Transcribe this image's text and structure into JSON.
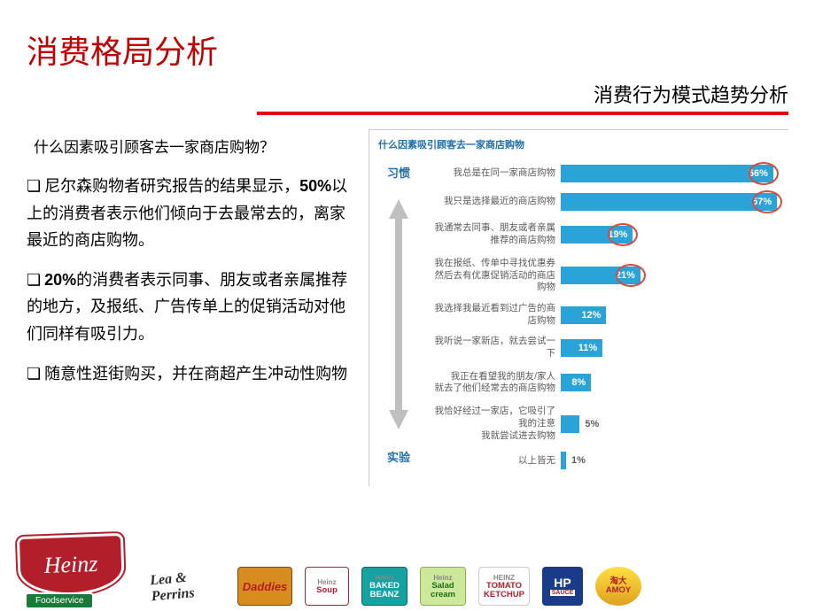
{
  "title": "消费格局分析",
  "subtitle": "消费行为模式趋势分析",
  "question": "什么因素吸引顾客去一家商店购物？",
  "bullet_marker": "❏",
  "bullets": {
    "b1": {
      "pre": "尼尔森购物者研究报告的结果显示，",
      "bold": "50%",
      "post": "以上的消费者表示他们倾向于去最常去的，离家最近的商店购物。"
    },
    "b2": {
      "bold": "20%",
      "post": "的消费者表示同事、朋友或者亲属推荐的地方，及报纸、广告传单上的促销活动对他们同样有吸引力。"
    },
    "b3": {
      "text": "随意性逛街购买，并在商超产生冲动性购物"
    }
  },
  "chart": {
    "type": "bar",
    "title": "什么因素吸引顾客去一家商店购物",
    "axis_top": "习惯",
    "axis_bottom": "实验",
    "bar_color": "#2aa3d9",
    "highlight_color": "#d94a3a",
    "label_color": "#5a5a5a",
    "title_color": "#1f6fa8",
    "max_value": 60,
    "bars": [
      {
        "label": "我总是在同一家商店购物",
        "value": 56,
        "pct": "56%",
        "highlight": true,
        "inside": true
      },
      {
        "label": "我只是选择最近的商店购物",
        "value": 57,
        "pct": "57%",
        "highlight": true,
        "inside": true
      },
      {
        "label": "我通常去同事、朋友或者亲属\n推荐的商店购物",
        "value": 19,
        "pct": "19%",
        "highlight": true,
        "inside": true,
        "double": true
      },
      {
        "label": "我在报纸、传单中寻找优惠券\n然后去有优惠促销活动的商店购物",
        "value": 21,
        "pct": "21%",
        "highlight": true,
        "inside": true,
        "double": true
      },
      {
        "label": "我选择我最近看到过广告的商店购物",
        "value": 12,
        "pct": "12%",
        "highlight": false,
        "inside": true
      },
      {
        "label": "我听说一家新店，就去尝试一下",
        "value": 11,
        "pct": "11%",
        "highlight": false,
        "inside": true
      },
      {
        "label": "我正在看望我的朋友/家人\n就去了他们经常去的商店购物",
        "value": 8,
        "pct": "8%",
        "highlight": false,
        "inside": true,
        "double": true
      },
      {
        "label": "我恰好经过一家店，它吸引了我的注意\n我就尝试进去购物",
        "value": 5,
        "pct": "5%",
        "highlight": false,
        "inside": false,
        "double": true
      },
      {
        "label": "以上皆无",
        "value": 1,
        "pct": "1%",
        "highlight": false,
        "inside": false
      }
    ]
  },
  "logos": {
    "heinz": "Heinz",
    "foodservice": "Foodservice",
    "signature": "Lea & Perrins",
    "daddies": "Daddies",
    "soup_h": "Heinz",
    "soup": "Soup",
    "beanz_h": "Heinz",
    "beanz": "BAKED\nBEANZ",
    "salad_h": "Heinz",
    "salad": "Salad\ncream",
    "ketchup_h": "HEINZ",
    "ketchup": "TOMATO\nKETCHUP",
    "hp": "HP",
    "hp_sub": "SAUCE",
    "amoy_cn": "淘大",
    "amoy": "AMOY"
  }
}
